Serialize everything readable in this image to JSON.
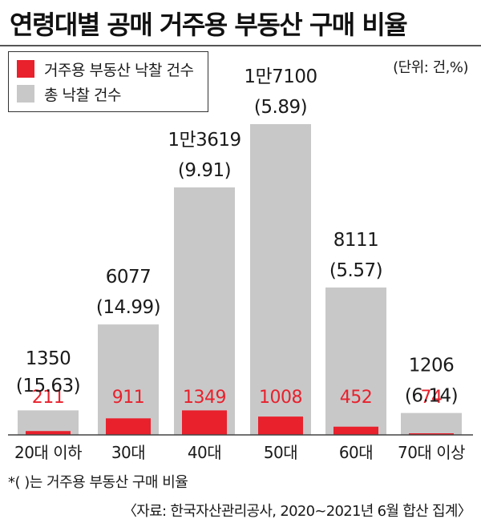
{
  "chart_data": {
    "type": "bar",
    "title": "연령대별 공매 거주용 부동산 구매 비율",
    "unit": "(단위: 건,%)",
    "categories": [
      "20대 이하",
      "30대",
      "40대",
      "50대",
      "60대",
      "70대 이상"
    ],
    "series": [
      {
        "name": "거주용 부동산 낙찰 건수",
        "color": "#e8212c",
        "values": [
          211,
          911,
          1349,
          1008,
          452,
          74
        ],
        "labels": [
          "211",
          "911",
          "1349",
          "1008",
          "452",
          "74"
        ]
      },
      {
        "name": "총 낙찰 건수",
        "color": "#c8c8c9",
        "values": [
          1350,
          6077,
          13619,
          17100,
          8111,
          1206
        ],
        "labels": [
          "1350",
          "6077",
          "1만3619",
          "1만7100",
          "8111",
          "1206"
        ]
      }
    ],
    "ratios": [
      "(15.63)",
      "(14.99)",
      "(9.91)",
      "(5.89)",
      "(5.57)",
      "(6.14)"
    ],
    "ylim": [
      0,
      17100
    ],
    "note": "*(   )는 거주용 부동산 구매 비율",
    "source": "〈자료: 한국자산관리공사, 2020~2021년 6월 합산 집계〉"
  }
}
